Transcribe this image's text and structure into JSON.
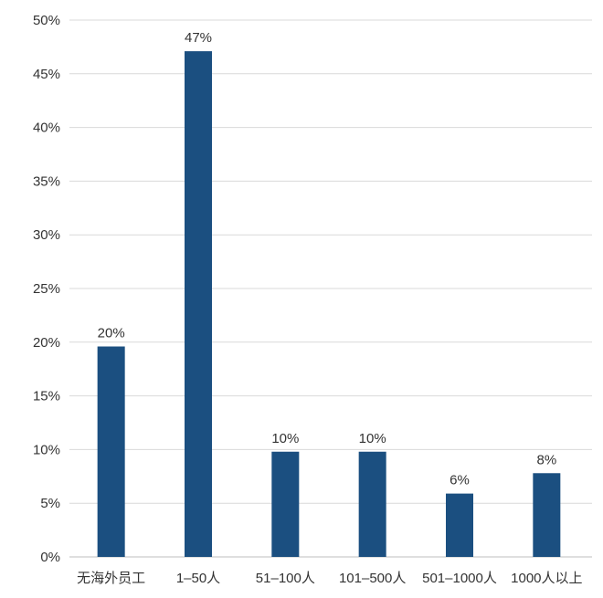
{
  "chart_data": {
    "type": "bar",
    "title": "",
    "xlabel": "",
    "ylabel": "",
    "categories": [
      "无海外员工",
      "1–50人",
      "51–100人",
      "101–500人",
      "501–1000人",
      "1000人以上"
    ],
    "values": [
      20,
      47,
      10,
      10,
      6,
      8
    ],
    "value_labels": [
      "20%",
      "47%",
      "10%",
      "10%",
      "6%",
      "8%"
    ],
    "display_values": [
      19.6,
      47.1,
      9.8,
      9.8,
      5.9,
      7.8
    ],
    "ylim": [
      0,
      50
    ],
    "yticks": [
      0,
      5,
      10,
      15,
      20,
      25,
      30,
      35,
      40,
      45,
      50
    ],
    "ytick_labels": [
      "0%",
      "5%",
      "10%",
      "15%",
      "20%",
      "25%",
      "30%",
      "35%",
      "40%",
      "45%",
      "50%"
    ],
    "grid": true,
    "legend": "none",
    "colors": {
      "bar": "#1b4f80",
      "grid": "#d9d9d9",
      "text": "#333333"
    }
  }
}
